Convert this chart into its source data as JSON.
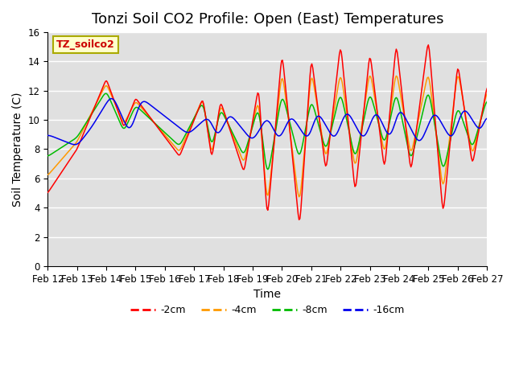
{
  "title": "Tonzi Soil CO2 Profile: Open (East) Temperatures",
  "xlabel": "Time",
  "ylabel": "Soil Temperature (C)",
  "ylim": [
    0,
    16
  ],
  "background_color": "#e0e0e0",
  "figure_color": "#ffffff",
  "annotation_text": "TZ_soilco2",
  "annotation_color": "#cc0000",
  "annotation_bg": "#ffffcc",
  "annotation_border": "#aaaa00",
  "legend_labels": [
    "-2cm",
    "-4cm",
    "-8cm",
    "-16cm"
  ],
  "line_colors": [
    "#ff0000",
    "#ff9900",
    "#00bb00",
    "#0000ee"
  ],
  "x_tick_labels": [
    "Feb 12",
    "Feb 13",
    "Feb 14",
    "Feb 15",
    "Feb 16",
    "Feb 17",
    "Feb 18",
    "Feb 19",
    "Feb 20",
    "Feb 21",
    "Feb 22",
    "Feb 23",
    "Feb 24",
    "Feb 25",
    "Feb 26",
    "Feb 27"
  ],
  "title_fontsize": 13,
  "label_fontsize": 10,
  "tick_fontsize": 8.5,
  "grid_color": "#ffffff",
  "yticks": [
    0,
    2,
    4,
    6,
    8,
    10,
    12,
    14,
    16
  ]
}
